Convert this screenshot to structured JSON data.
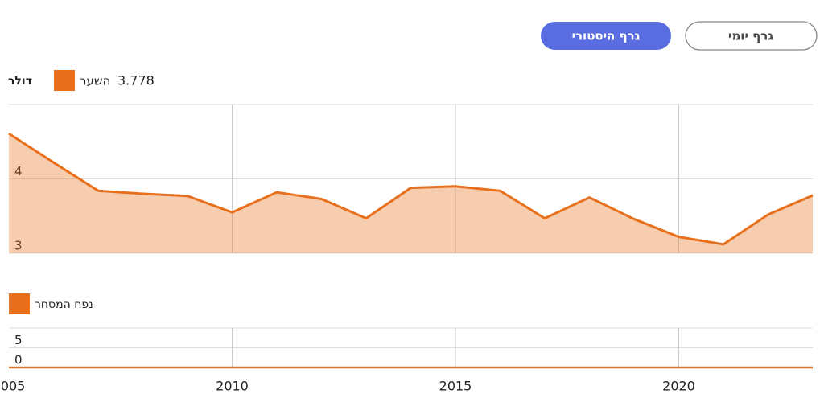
{
  "tabs": [
    "גרף יומי",
    "גרף היסטורי"
  ],
  "chart_data": [
    {
      "type": "area",
      "unit": "דולר",
      "current_value": 3.778,
      "x": [
        2005,
        2006,
        2007,
        2008,
        2009,
        2010,
        2011,
        2012,
        2013,
        2014,
        2015,
        2016,
        2017,
        2018,
        2019,
        2020,
        2021,
        2022,
        2023
      ],
      "series": [
        {
          "name": "השער",
          "color": "#e8701c",
          "values": [
            4.61,
            4.22,
            3.84,
            3.8,
            3.77,
            3.55,
            3.82,
            3.73,
            3.47,
            3.88,
            3.9,
            3.84,
            3.47,
            3.75,
            3.46,
            3.22,
            3.12,
            3.52,
            3.778
          ]
        }
      ],
      "xlim": [
        2005,
        2023
      ],
      "xticks": [
        2005,
        2010,
        2015,
        2020
      ],
      "ylim": [
        3,
        5
      ],
      "yticks": [
        3,
        4
      ],
      "grid": true
    },
    {
      "type": "line",
      "x": [
        2005,
        2006,
        2007,
        2008,
        2009,
        2010,
        2011,
        2012,
        2013,
        2014,
        2015,
        2016,
        2017,
        2018,
        2019,
        2020,
        2021,
        2022,
        2023
      ],
      "series": [
        {
          "name": "נפח המסחר",
          "color": "#e8701c",
          "values": [
            0,
            0,
            0,
            0,
            0,
            0,
            0,
            0,
            0,
            0,
            0,
            0,
            0,
            0,
            0,
            0,
            0,
            0,
            0
          ]
        }
      ],
      "xlim": [
        2005,
        2023
      ],
      "xticks": [
        2005,
        2010,
        2015,
        2020
      ],
      "ylim": [
        0,
        10
      ],
      "yticks": [
        0,
        5
      ],
      "grid": true
    }
  ]
}
